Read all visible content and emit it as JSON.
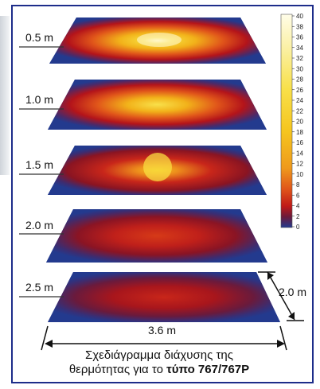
{
  "layers": [
    {
      "label": "0.5 m"
    },
    {
      "label": "1.0 m"
    },
    {
      "label": "1.5 m"
    },
    {
      "label": "2.0 m"
    },
    {
      "label": "2.5 m"
    }
  ],
  "dimensions": {
    "width_label": "3.6 m",
    "depth_label": "2.0 m"
  },
  "legend": {
    "ticks": [
      "40",
      "38",
      "36",
      "34",
      "32",
      "30",
      "28",
      "26",
      "24",
      "22",
      "20",
      "18",
      "16",
      "14",
      "12",
      "10",
      "8",
      "6",
      "4",
      "2",
      "0"
    ]
  },
  "caption": {
    "line1": "Σχεδιάγραμμα διάχυσης της",
    "line2_prefix": "θερμότητας για το ",
    "line2_bold": "τύπο 767/767P"
  },
  "colors": {
    "cold": "#233a8e",
    "warm": "#c81e0f",
    "hot": "#f2c21a",
    "peak": "#fff3a0",
    "frame": "#1d2d8a"
  }
}
